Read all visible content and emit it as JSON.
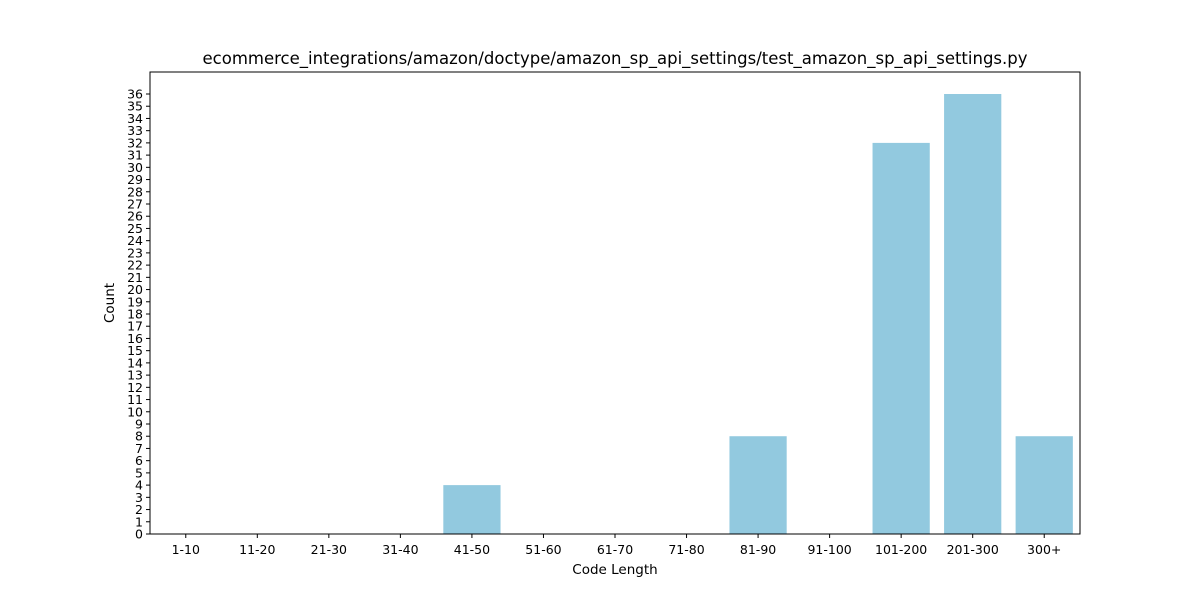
{
  "chart_data": {
    "type": "bar",
    "title": "ecommerce_integrations/amazon/doctype/amazon_sp_api_settings/test_amazon_sp_api_settings.py",
    "xlabel": "Code Length",
    "ylabel": "Count",
    "categories": [
      "1-10",
      "11-20",
      "21-30",
      "31-40",
      "41-50",
      "51-60",
      "61-70",
      "71-80",
      "81-90",
      "91-100",
      "101-200",
      "201-300",
      "300+"
    ],
    "values": [
      0,
      0,
      0,
      0,
      4,
      0,
      0,
      0,
      8,
      0,
      32,
      36,
      8
    ],
    "ylim": [
      0,
      37.8
    ],
    "y_ticks": [
      0,
      1,
      2,
      3,
      4,
      5,
      6,
      7,
      8,
      9,
      10,
      11,
      12,
      13,
      14,
      15,
      16,
      17,
      18,
      19,
      20,
      21,
      22,
      23,
      24,
      25,
      26,
      27,
      28,
      29,
      30,
      31,
      32,
      33,
      34,
      35,
      36
    ],
    "bar_color": "#92c9df",
    "grid": false,
    "legend": "none"
  }
}
